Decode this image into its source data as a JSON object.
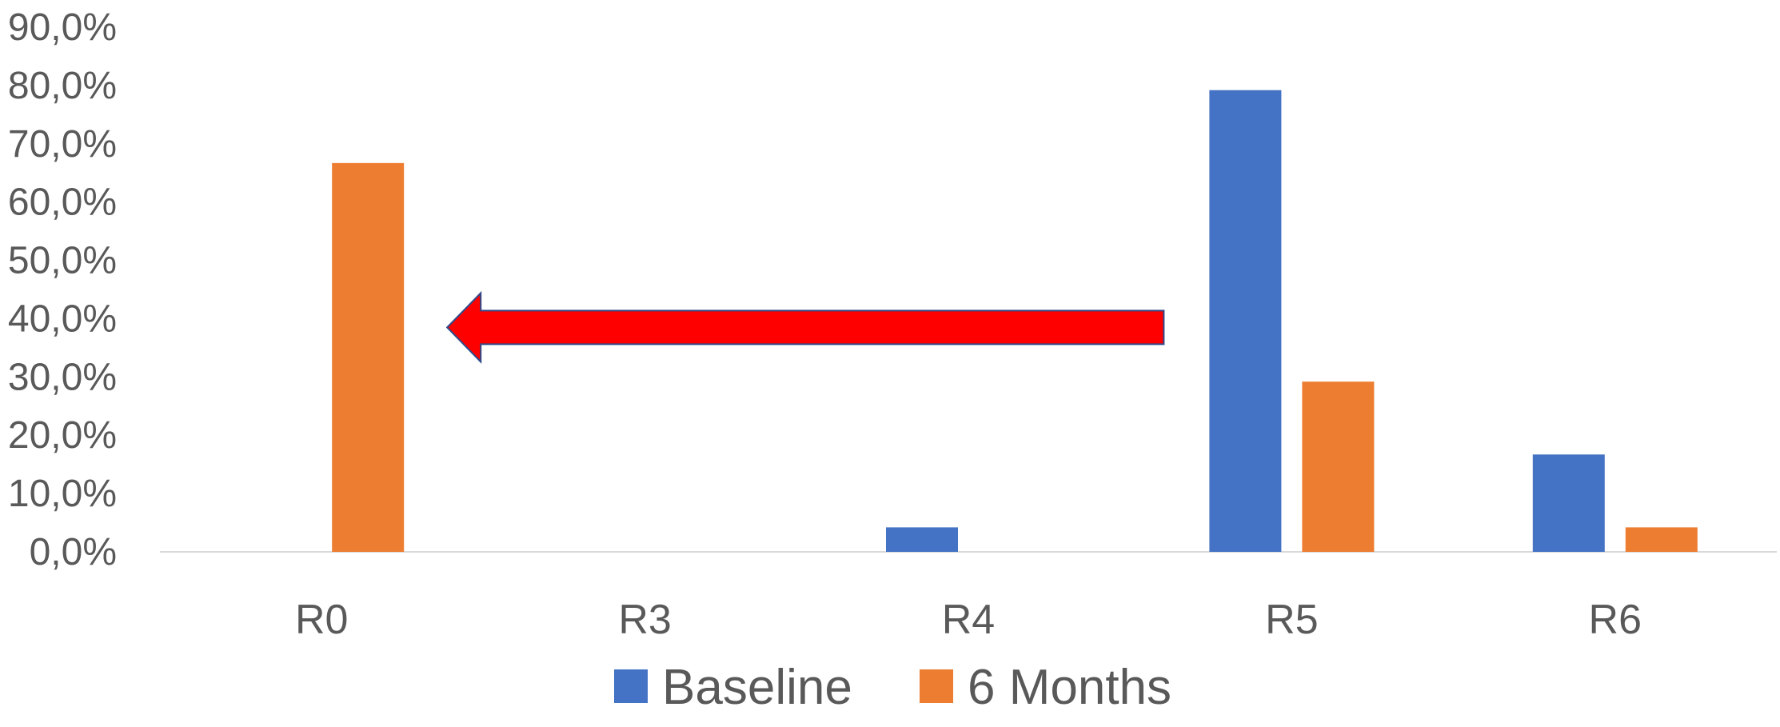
{
  "chart_data": {
    "type": "bar",
    "categories": [
      "R0",
      "R3",
      "R4",
      "R5",
      "R6"
    ],
    "series": [
      {
        "name": "Baseline",
        "color": "#4472C4",
        "values": [
          0,
          0,
          4.2,
          79.2,
          16.7
        ]
      },
      {
        "name": "6 Months",
        "color": "#ED7D31",
        "values": [
          66.7,
          0,
          0,
          29.2,
          4.2
        ]
      }
    ],
    "ylim": [
      0,
      90
    ],
    "yticks": [
      0,
      10,
      20,
      30,
      40,
      50,
      60,
      70,
      80,
      90
    ],
    "ytick_labels": [
      "0,0%",
      "10,0%",
      "20,0%",
      "30,0%",
      "40,0%",
      "50,0%",
      "60,0%",
      "70,0%",
      "80,0%",
      "90,0%"
    ],
    "grid": false,
    "legend_position": "bottom",
    "annotation": {
      "type": "arrow",
      "direction": "left",
      "color": "#FF0000",
      "from_category": "R5",
      "to_category": "R0",
      "y_value": 38.5
    }
  }
}
